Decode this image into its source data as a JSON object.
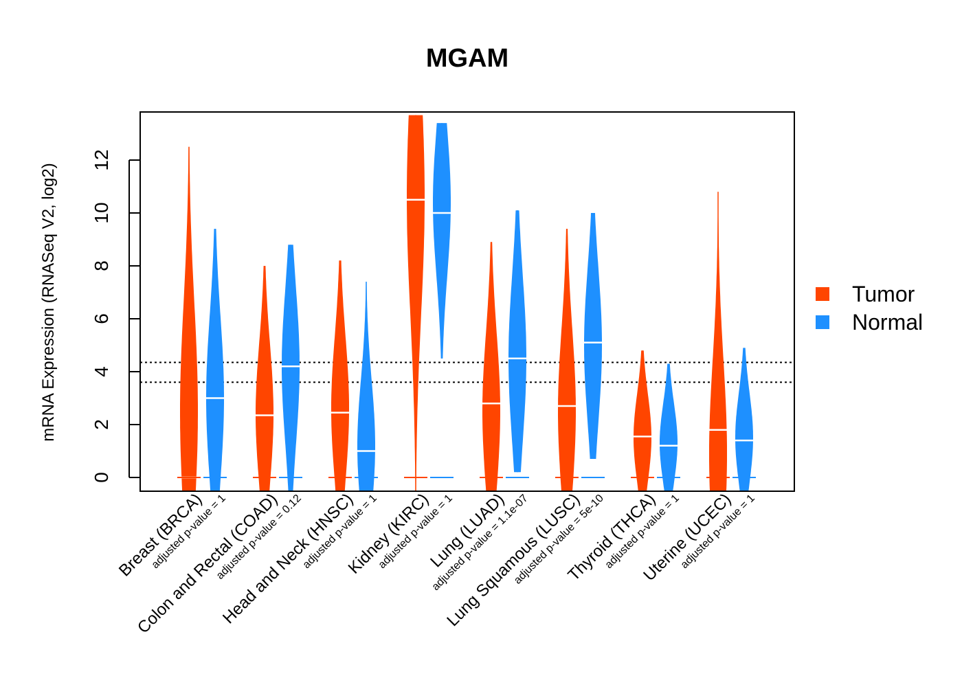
{
  "chart_data": {
    "type": "violin",
    "title": "MGAM",
    "ylabel": "mRNA Expression (RNASeq V2, log2)",
    "xlabel": "",
    "ylim": [
      -0.55,
      13.8
    ],
    "yticks": [
      0,
      2,
      4,
      6,
      8,
      10,
      12
    ],
    "reference_lines": [
      4.35,
      3.6
    ],
    "legend": [
      {
        "name": "Tumor",
        "color": "#FF4500"
      },
      {
        "name": "Normal",
        "color": "#1E90FF"
      }
    ],
    "legend_position": "right",
    "categories": [
      {
        "label": "Breast (BRCA)",
        "pvalue": "adjusted p-value = 1",
        "tumor": {
          "min": -0.5,
          "max": 12.5,
          "median": 0.0,
          "mode": 2.5
        },
        "normal": {
          "min": -0.5,
          "max": 9.4,
          "median": 3.0,
          "mode": 3.0
        }
      },
      {
        "label": "Colon and Rectal (COAD)",
        "pvalue": "adjusted p-value = 0.12",
        "tumor": {
          "min": -0.5,
          "max": 8.0,
          "median": 2.35,
          "mode": 2.4
        },
        "normal": {
          "min": -0.5,
          "max": 8.8,
          "median": 4.2,
          "mode": 4.2
        }
      },
      {
        "label": "Head and Neck (HNSC)",
        "pvalue": "adjusted p-value = 1",
        "tumor": {
          "min": -0.5,
          "max": 8.2,
          "median": 2.45,
          "mode": 2.6
        },
        "normal": {
          "min": -0.5,
          "max": 7.4,
          "median": 1.0,
          "mode": 1.2
        }
      },
      {
        "label": "Kidney (KIRC)",
        "pvalue": "adjusted p-value = 1",
        "tumor": {
          "min": -0.5,
          "max": 13.7,
          "median": 10.5,
          "mode": 10.6
        },
        "normal": {
          "min": 4.5,
          "max": 13.4,
          "median": 10.0,
          "mode": 10.4
        }
      },
      {
        "label": "Lung (LUAD)",
        "pvalue": "adjusted p-value = 1.1e-07",
        "tumor": {
          "min": -0.5,
          "max": 8.9,
          "median": 2.8,
          "mode": 2.5
        },
        "normal": {
          "min": 0.2,
          "max": 10.1,
          "median": 4.5,
          "mode": 4.5
        }
      },
      {
        "label": "Lung Squamous (LUSC)",
        "pvalue": "adjusted p-value = 5e-10",
        "tumor": {
          "min": -0.5,
          "max": 9.4,
          "median": 2.7,
          "mode": 2.5
        },
        "normal": {
          "min": 0.7,
          "max": 10.0,
          "median": 5.1,
          "mode": 5.0
        }
      },
      {
        "label": "Thyroid (THCA)",
        "pvalue": "adjusted p-value = 1",
        "tumor": {
          "min": -0.5,
          "max": 4.8,
          "median": 1.55,
          "mode": 1.5
        },
        "normal": {
          "min": -0.5,
          "max": 4.3,
          "median": 1.2,
          "mode": 1.3
        }
      },
      {
        "label": "Uterine (UCEC)",
        "pvalue": "adjusted p-value = 1",
        "tumor": {
          "min": -0.5,
          "max": 10.8,
          "median": 1.8,
          "mode": 0.9
        },
        "normal": {
          "min": -0.5,
          "max": 4.9,
          "median": 1.4,
          "mode": 1.5
        }
      }
    ]
  }
}
